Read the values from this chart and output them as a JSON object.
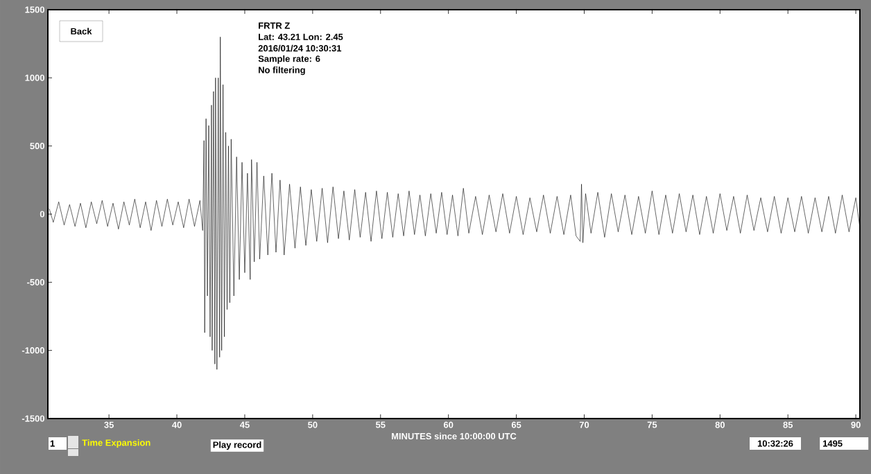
{
  "chart_data": {
    "type": "line",
    "xlabel": "MINUTES since 10:00:00 UTC",
    "annotations": [
      "Back",
      "FRTR  Z",
      "Lat: 43.21 Lon: 2.45",
      "2016/01/24 10:30:31",
      "Sample rate: 6",
      "No filtering",
      "1",
      "Time Expansion",
      "Play record",
      "10:32:26",
      "1495"
    ],
    "xlim": [
      30.5,
      90.3
    ],
    "ylim": [
      -1500,
      1500
    ],
    "xticks": [
      35,
      40,
      45,
      50,
      55,
      60,
      65,
      70,
      75,
      80,
      85,
      90
    ],
    "yticks": [
      -1500,
      -1000,
      -500,
      0,
      500,
      1000,
      1500
    ],
    "color": "#000000",
    "x": [
      30.6,
      30.9,
      31.3,
      31.7,
      32.1,
      32.5,
      32.9,
      33.3,
      33.7,
      34.1,
      34.5,
      34.9,
      35.3,
      35.7,
      36.1,
      36.5,
      36.9,
      37.3,
      37.7,
      38.1,
      38.5,
      38.9,
      39.3,
      39.7,
      40.1,
      40.5,
      40.9,
      41.3,
      41.7,
      41.9,
      42.0,
      42.05,
      42.15,
      42.25,
      42.35,
      42.45,
      42.55,
      42.6,
      42.7,
      42.8,
      42.85,
      42.95,
      43.05,
      43.15,
      43.2,
      43.3,
      43.4,
      43.5,
      43.6,
      43.7,
      43.8,
      43.9,
      44.0,
      44.2,
      44.4,
      44.6,
      44.8,
      45.0,
      45.2,
      45.4,
      45.5,
      45.7,
      45.9,
      46.1,
      46.4,
      46.7,
      47.0,
      47.3,
      47.6,
      47.9,
      48.3,
      48.7,
      49.1,
      49.5,
      49.9,
      50.3,
      50.7,
      51.1,
      51.5,
      51.9,
      52.3,
      52.7,
      53.1,
      53.5,
      53.9,
      54.3,
      54.7,
      55.1,
      55.5,
      55.9,
      56.3,
      56.7,
      57.1,
      57.5,
      57.9,
      58.3,
      58.7,
      59.1,
      59.5,
      59.9,
      60.3,
      60.7,
      61.1,
      61.5,
      62.0,
      62.5,
      63.0,
      63.5,
      64.0,
      64.5,
      65.0,
      65.5,
      66.0,
      66.5,
      67.0,
      67.5,
      68.0,
      68.5,
      69.0,
      69.4,
      69.7,
      69.8,
      69.9,
      70.1,
      70.5,
      71.0,
      71.5,
      72.0,
      72.5,
      73.0,
      73.5,
      74.0,
      74.5,
      75.0,
      75.5,
      76.0,
      76.5,
      77.0,
      77.5,
      78.0,
      78.5,
      79.0,
      79.5,
      80.0,
      80.5,
      81.0,
      81.5,
      82.0,
      82.5,
      83.0,
      83.5,
      84.0,
      84.5,
      85.0,
      85.5,
      86.0,
      86.5,
      87.0,
      87.5,
      88.0,
      88.5,
      89.0,
      89.5,
      90.0,
      90.3
    ],
    "values": [
      40,
      -60,
      90,
      -80,
      70,
      -90,
      80,
      -100,
      90,
      -70,
      100,
      -90,
      80,
      -110,
      90,
      -80,
      110,
      -100,
      90,
      -120,
      100,
      -90,
      110,
      -80,
      90,
      -100,
      110,
      -90,
      100,
      -120,
      540,
      -870,
      700,
      -600,
      650,
      -900,
      800,
      -1000,
      900,
      -1100,
      1000,
      -1140,
      1000,
      -1050,
      1300,
      -1000,
      950,
      -900,
      600,
      -700,
      500,
      -650,
      550,
      -600,
      420,
      -480,
      380,
      -430,
      300,
      -480,
      400,
      -350,
      380,
      -330,
      280,
      -300,
      300,
      -280,
      250,
      -300,
      220,
      -250,
      200,
      -230,
      180,
      -200,
      190,
      -210,
      200,
      -180,
      170,
      -190,
      180,
      -170,
      160,
      -200,
      170,
      -180,
      160,
      -170,
      150,
      -160,
      170,
      -150,
      140,
      -160,
      150,
      -140,
      160,
      -150,
      140,
      -160,
      190,
      -140,
      130,
      -150,
      140,
      -130,
      150,
      -140,
      130,
      -150,
      120,
      -130,
      140,
      -140,
      130,
      -150,
      140,
      -160,
      -200,
      220,
      -210,
      150,
      -140,
      160,
      -170,
      150,
      -130,
      140,
      -150,
      130,
      -140,
      170,
      -150,
      140,
      -140,
      150,
      -130,
      140,
      -150,
      130,
      -140,
      150,
      -120,
      130,
      -140,
      140,
      -120,
      120,
      -130,
      130,
      -140,
      120,
      -130,
      130,
      -140,
      120,
      -130,
      130,
      -140,
      140,
      -130,
      120,
      -100
    ]
  }
}
